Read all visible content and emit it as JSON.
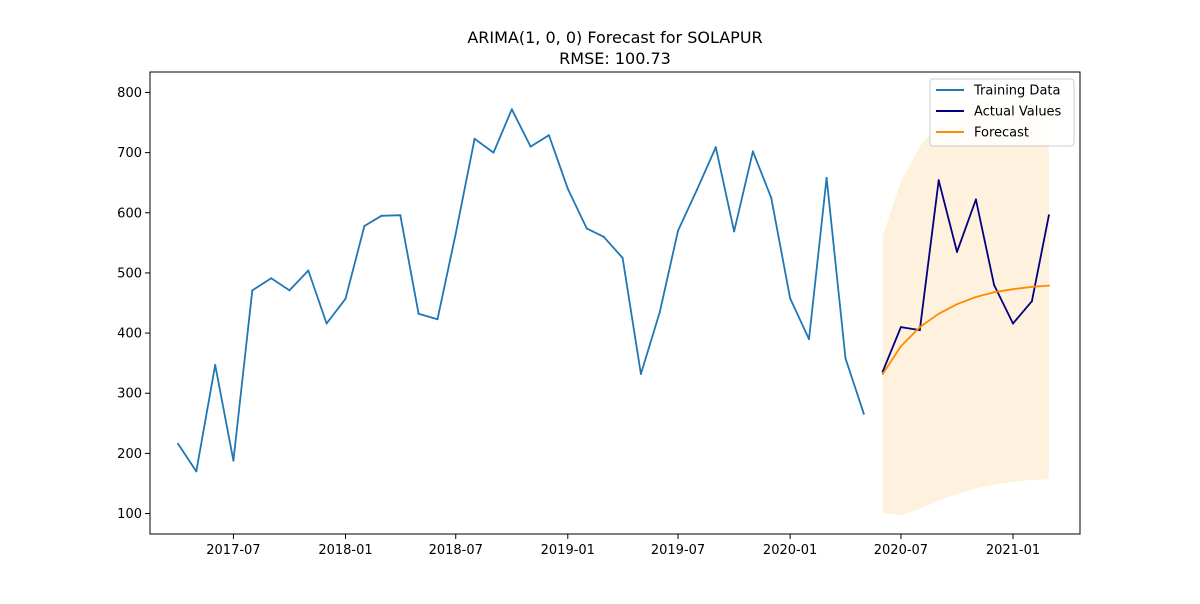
{
  "chart_data": {
    "type": "line",
    "title": "ARIMA(1, 0, 0) Forecast for SOLAPUR",
    "subtitle": "RMSE: 100.73",
    "xlabel": "",
    "ylabel": "",
    "xlim": [
      "2017-02-14",
      "2021-04-21"
    ],
    "ylim": [
      66,
      834
    ],
    "grid": false,
    "legend_position": "top-right",
    "x_ticks": [
      "2017-07",
      "2018-01",
      "2018-07",
      "2019-01",
      "2019-07",
      "2020-01",
      "2020-07",
      "2021-01"
    ],
    "y_ticks": [
      100,
      200,
      300,
      400,
      500,
      600,
      700,
      800
    ],
    "series": [
      {
        "name": "Training Data",
        "color": "#1f77b4",
        "x": [
          "2017-04-01",
          "2017-05-01",
          "2017-06-01",
          "2017-07-01",
          "2017-08-01",
          "2017-09-01",
          "2017-10-01",
          "2017-11-01",
          "2017-12-01",
          "2018-01-01",
          "2018-02-01",
          "2018-03-01",
          "2018-04-01",
          "2018-05-01",
          "2018-06-01",
          "2018-07-01",
          "2018-08-01",
          "2018-09-01",
          "2018-10-01",
          "2018-11-01",
          "2018-12-01",
          "2019-01-01",
          "2019-02-01",
          "2019-03-01",
          "2019-04-01",
          "2019-05-01",
          "2019-06-01",
          "2019-07-01",
          "2019-08-01",
          "2019-09-01",
          "2019-10-01",
          "2019-11-01",
          "2019-12-01",
          "2020-01-01",
          "2020-02-01",
          "2020-03-01",
          "2020-04-01",
          "2020-05-01"
        ],
        "values": [
          216,
          170,
          347,
          188,
          471,
          491,
          471,
          504,
          416,
          457,
          578,
          595,
          596,
          432,
          423,
          565,
          723,
          700,
          772,
          710,
          729,
          640,
          574,
          560,
          525,
          332,
          435,
          570,
          638,
          709,
          569,
          702,
          625,
          458,
          390,
          658,
          358,
          266
        ]
      },
      {
        "name": "Actual Values",
        "color": "#000080",
        "x": [
          "2020-06-01",
          "2020-07-01",
          "2020-08-01",
          "2020-09-01",
          "2020-10-01",
          "2020-11-01",
          "2020-12-01",
          "2021-01-01",
          "2021-02-01",
          "2021-03-01"
        ],
        "values": [
          336,
          410,
          405,
          654,
          535,
          622,
          480,
          416,
          453,
          596
        ]
      },
      {
        "name": "Forecast",
        "color": "#ff8c00",
        "x": [
          "2020-06-01",
          "2020-07-01",
          "2020-08-01",
          "2020-09-01",
          "2020-10-01",
          "2020-11-01",
          "2020-12-01",
          "2021-01-01",
          "2021-02-01",
          "2021-03-01"
        ],
        "values": [
          332,
          378,
          410,
          432,
          448,
          460,
          468,
          473,
          477,
          479
        ],
        "confidence_lower": [
          101,
          97,
          108,
          121,
          133,
          142,
          148,
          153,
          156,
          157
        ],
        "confidence_upper": [
          561,
          652,
          710,
          748,
          770,
          783,
          792,
          796,
          799,
          800
        ],
        "confidence_color": "#fdebd0"
      }
    ]
  }
}
